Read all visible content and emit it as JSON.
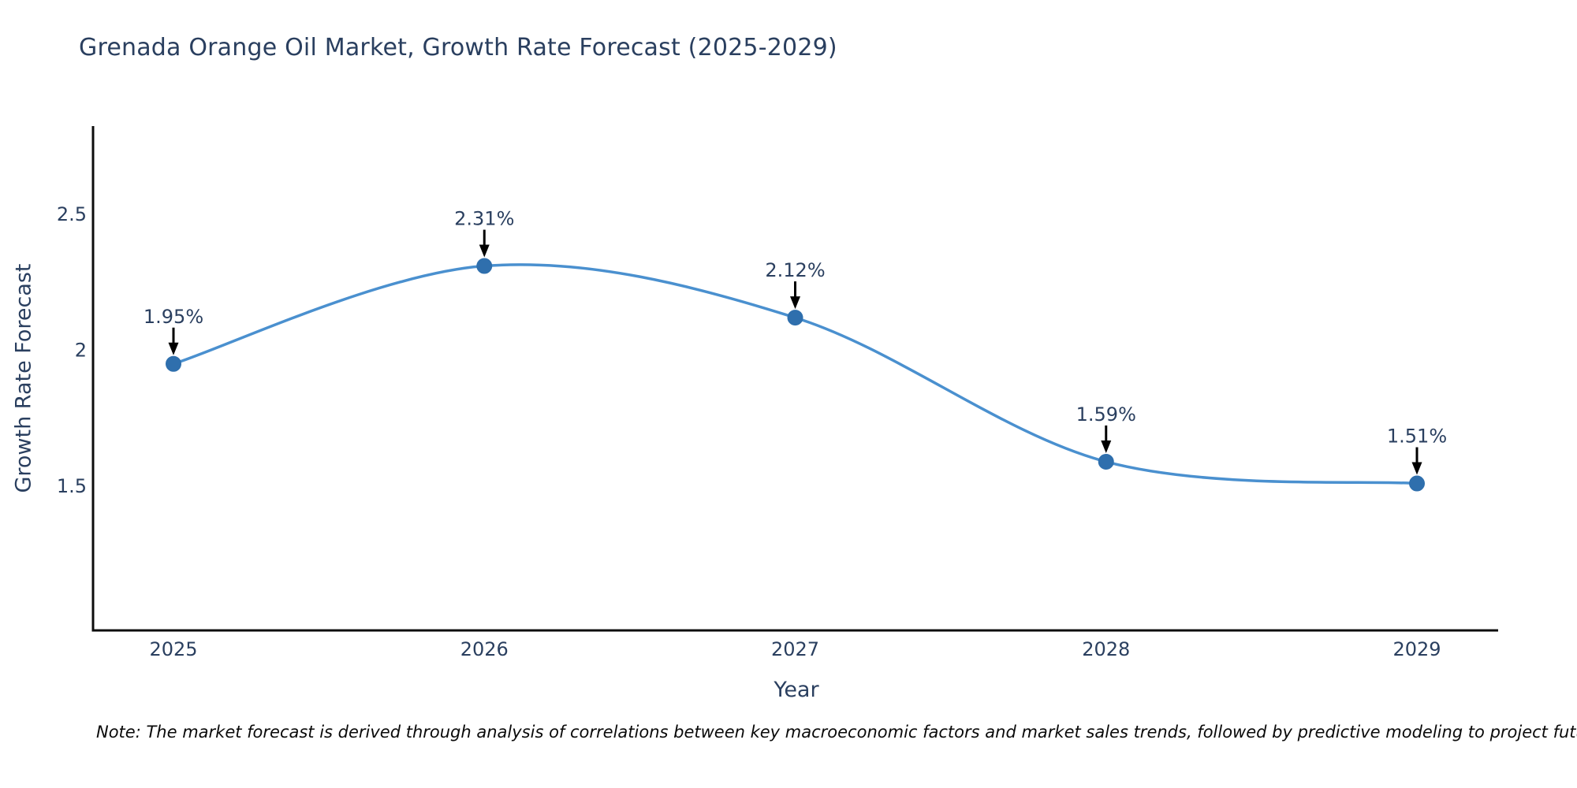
{
  "page": {
    "background": "#ffffff"
  },
  "chart_data": {
    "type": "line",
    "title": "Grenada Orange Oil Market, Growth Rate Forecast (2025-2029)",
    "xlabel": "Year",
    "ylabel": "Growth Rate Forecast",
    "x": [
      "2025",
      "2026",
      "2027",
      "2028",
      "2029"
    ],
    "series": [
      {
        "name": "Growth Rate Forecast",
        "values": [
          1.95,
          2.31,
          2.12,
          1.59,
          1.51
        ]
      }
    ],
    "data_labels": [
      "1.95%",
      "2.31%",
      "2.12%",
      "1.59%",
      "1.51%"
    ],
    "yticks": [
      {
        "value": 2.5,
        "label": "2.5"
      },
      {
        "value": 2.0,
        "label": "2"
      },
      {
        "value": 1.5,
        "label": "1.5"
      }
    ],
    "ylim": [
      0.97,
      2.82
    ],
    "grid": false,
    "legend": "none",
    "line_shape": "spline",
    "marker_style": "circle-with-down-arrow-annotation",
    "colors": {
      "line": "#4a90cf",
      "marker": "#2f6fad",
      "arrow": "#000000",
      "text": "#2a3f5f",
      "axis": "#0d0d0d",
      "title": "#2a3f5f"
    }
  },
  "note": {
    "text": "Note: The market forecast is derived through analysis of correlations between key macroeconomic factors and market sales trends, followed by predictive modeling to project future sales"
  }
}
